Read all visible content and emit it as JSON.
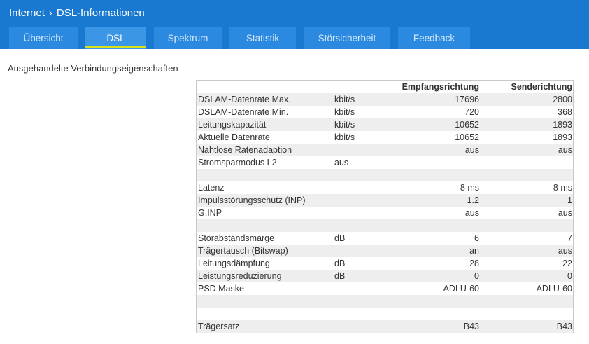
{
  "breadcrumb": {
    "root": "Internet",
    "separator": "›",
    "current": "DSL-Informationen"
  },
  "tabs": [
    {
      "label": "Übersicht",
      "active": false
    },
    {
      "label": "DSL",
      "active": true
    },
    {
      "label": "Spektrum",
      "active": false
    },
    {
      "label": "Statistik",
      "active": false
    },
    {
      "label": "Störsicherheit",
      "active": false
    },
    {
      "label": "Feedback",
      "active": false
    }
  ],
  "section_title": "Ausgehandelte Verbindungseigenschaften",
  "table": {
    "columns": {
      "label": "",
      "unit": "",
      "rx": "Empfangsrichtung",
      "tx": "Senderichtung"
    },
    "rows": [
      {
        "label": "DSLAM-Datenrate Max.",
        "unit": "kbit/s",
        "rx": "17696",
        "tx": "2800"
      },
      {
        "label": "DSLAM-Datenrate Min.",
        "unit": "kbit/s",
        "rx": "720",
        "tx": "368"
      },
      {
        "label": "Leitungskapazität",
        "unit": "kbit/s",
        "rx": "10652",
        "tx": "1893"
      },
      {
        "label": "Aktuelle Datenrate",
        "unit": "kbit/s",
        "rx": "10652",
        "tx": "1893"
      },
      {
        "label": "Nahtlose Ratenadaption",
        "unit": "",
        "rx": "aus",
        "tx": "aus"
      },
      {
        "label": "Stromsparmodus L2",
        "unit": "aus",
        "rx": "",
        "tx": ""
      },
      {
        "label": "",
        "unit": "",
        "rx": "",
        "tx": ""
      },
      {
        "label": "Latenz",
        "unit": "",
        "rx": "8 ms",
        "tx": "8 ms"
      },
      {
        "label": "Impulsstörungsschutz (INP)",
        "unit": "",
        "rx": "1.2",
        "tx": "1"
      },
      {
        "label": "G.INP",
        "unit": "",
        "rx": "aus",
        "tx": "aus"
      },
      {
        "label": "",
        "unit": "",
        "rx": "",
        "tx": ""
      },
      {
        "label": "Störabstandsmarge",
        "unit": "dB",
        "rx": "6",
        "tx": "7"
      },
      {
        "label": "Trägertausch (Bitswap)",
        "unit": "",
        "rx": "an",
        "tx": "aus"
      },
      {
        "label": "Leitungsdämpfung",
        "unit": "dB",
        "rx": "28",
        "tx": "22"
      },
      {
        "label": "Leistungsreduzierung",
        "unit": "dB",
        "rx": "0",
        "tx": "0"
      },
      {
        "label": "PSD Maske",
        "unit": "",
        "rx": "ADLU-60",
        "tx": "ADLU-60"
      },
      {
        "label": "",
        "unit": "",
        "rx": "",
        "tx": ""
      },
      {
        "label": "",
        "unit": "",
        "rx": "",
        "tx": ""
      },
      {
        "label": "Trägersatz",
        "unit": "",
        "rx": "B43",
        "tx": "B43"
      }
    ]
  },
  "colors": {
    "header": "#1978cf",
    "tab": "#2b8ae0",
    "tab_active_underline": "#d6e11a",
    "row_alt": "#eeeeee"
  }
}
